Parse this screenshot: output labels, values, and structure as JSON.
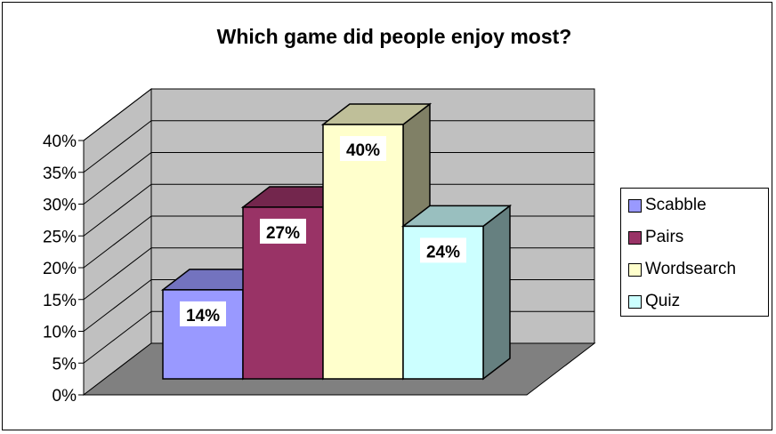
{
  "chart_data": {
    "type": "bar",
    "title": "Which game did people enjoy most?",
    "categories": [
      "Scabble",
      "Pairs",
      "Wordsearch",
      "Quiz"
    ],
    "values": [
      14,
      27,
      40,
      24
    ],
    "value_labels": [
      "14%",
      "27%",
      "40%",
      "24%"
    ],
    "y_ticks": [
      "0%",
      "5%",
      "10%",
      "15%",
      "20%",
      "25%",
      "30%",
      "35%",
      "40%"
    ],
    "ylim": [
      0,
      40
    ],
    "grid": true,
    "legend": "right",
    "colors": [
      "#9999ff",
      "#993366",
      "#ffffcc",
      "#ccffff"
    ]
  }
}
